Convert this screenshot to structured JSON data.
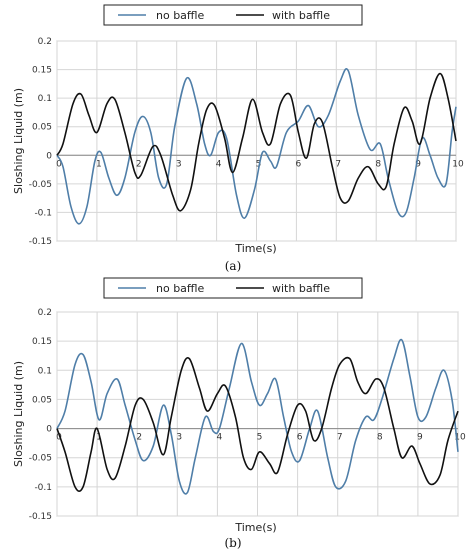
{
  "colors": {
    "no_baffle": "#4f7ea8",
    "with_baffle": "#111111",
    "grid": "#d6d6d6",
    "zero_axis": "#888888"
  },
  "chart_data": [
    {
      "type": "line",
      "panel_label": "(a)",
      "xlabel": "Time(s)",
      "ylabel": "Sloshing Liquid  (m)",
      "xlim": [
        0,
        10
      ],
      "ylim": [
        -0.15,
        0.2
      ],
      "x_ticks": [
        0,
        1,
        2,
        3,
        4,
        5,
        6,
        7,
        8,
        9,
        10
      ],
      "y_ticks": [
        -0.15,
        -0.1,
        -0.05,
        0,
        0.05,
        0.1,
        0.15,
        0.2
      ],
      "y_tick_labels": [
        "-0.15",
        "-0.1",
        "-0.05",
        "0",
        "0.05",
        "0.1",
        "0.15",
        "0.2"
      ],
      "grid": true,
      "legend_position": "top",
      "series": [
        {
          "name": "no baffle",
          "points": [
            [
              0,
              0
            ],
            [
              0.15,
              -0.02
            ],
            [
              0.35,
              -0.09
            ],
            [
              0.55,
              -0.12
            ],
            [
              0.75,
              -0.09
            ],
            [
              0.95,
              -0.01
            ],
            [
              1.1,
              0.005
            ],
            [
              1.3,
              -0.04
            ],
            [
              1.5,
              -0.07
            ],
            [
              1.7,
              -0.04
            ],
            [
              1.95,
              0.04
            ],
            [
              2.15,
              0.068
            ],
            [
              2.35,
              0.04
            ],
            [
              2.55,
              -0.04
            ],
            [
              2.75,
              -0.05
            ],
            [
              2.95,
              0.05
            ],
            [
              3.25,
              0.135
            ],
            [
              3.5,
              0.09
            ],
            [
              3.7,
              0.02
            ],
            [
              3.85,
              0.0
            ],
            [
              4.05,
              0.04
            ],
            [
              4.25,
              0.03
            ],
            [
              4.5,
              -0.07
            ],
            [
              4.7,
              -0.11
            ],
            [
              4.95,
              -0.06
            ],
            [
              5.15,
              0.005
            ],
            [
              5.35,
              -0.01
            ],
            [
              5.5,
              -0.02
            ],
            [
              5.75,
              0.04
            ],
            [
              6.05,
              0.06
            ],
            [
              6.3,
              0.087
            ],
            [
              6.55,
              0.05
            ],
            [
              6.8,
              0.07
            ],
            [
              7.1,
              0.13
            ],
            [
              7.3,
              0.148
            ],
            [
              7.55,
              0.07
            ],
            [
              7.85,
              0.01
            ],
            [
              8.1,
              0.02
            ],
            [
              8.3,
              -0.04
            ],
            [
              8.55,
              -0.1
            ],
            [
              8.75,
              -0.1
            ],
            [
              8.95,
              -0.04
            ],
            [
              9.15,
              0.03
            ],
            [
              9.35,
              0.0
            ],
            [
              9.55,
              -0.04
            ],
            [
              9.75,
              -0.05
            ],
            [
              9.9,
              0.04
            ],
            [
              10.0,
              0.085
            ]
          ]
        },
        {
          "name": "with baffle",
          "points": [
            [
              0,
              0
            ],
            [
              0.15,
              0.02
            ],
            [
              0.4,
              0.09
            ],
            [
              0.6,
              0.107
            ],
            [
              0.8,
              0.07
            ],
            [
              1.0,
              0.04
            ],
            [
              1.25,
              0.09
            ],
            [
              1.45,
              0.098
            ],
            [
              1.7,
              0.04
            ],
            [
              1.95,
              -0.03
            ],
            [
              2.1,
              -0.035
            ],
            [
              2.4,
              0.015
            ],
            [
              2.6,
              0.0
            ],
            [
              2.9,
              -0.07
            ],
            [
              3.1,
              -0.097
            ],
            [
              3.35,
              -0.06
            ],
            [
              3.55,
              0.02
            ],
            [
              3.75,
              0.08
            ],
            [
              3.95,
              0.087
            ],
            [
              4.2,
              0.03
            ],
            [
              4.4,
              -0.03
            ],
            [
              4.65,
              0.03
            ],
            [
              4.9,
              0.098
            ],
            [
              5.15,
              0.04
            ],
            [
              5.35,
              0.02
            ],
            [
              5.6,
              0.09
            ],
            [
              5.85,
              0.105
            ],
            [
              6.05,
              0.04
            ],
            [
              6.25,
              -0.005
            ],
            [
              6.45,
              0.055
            ],
            [
              6.65,
              0.058
            ],
            [
              6.9,
              -0.02
            ],
            [
              7.1,
              -0.075
            ],
            [
              7.3,
              -0.08
            ],
            [
              7.55,
              -0.04
            ],
            [
              7.8,
              -0.02
            ],
            [
              8.05,
              -0.05
            ],
            [
              8.25,
              -0.055
            ],
            [
              8.45,
              0.02
            ],
            [
              8.7,
              0.083
            ],
            [
              8.9,
              0.06
            ],
            [
              9.1,
              0.02
            ],
            [
              9.35,
              0.1
            ],
            [
              9.6,
              0.143
            ],
            [
              9.8,
              0.1
            ],
            [
              10.0,
              0.025
            ]
          ]
        }
      ]
    },
    {
      "type": "line",
      "panel_label": "(b)",
      "xlabel": "Time(s)",
      "ylabel": "Sloshing Liquid  (m)",
      "xlim": [
        0,
        10
      ],
      "ylim": [
        -0.15,
        0.2
      ],
      "x_ticks": [
        0,
        1,
        2,
        3,
        4,
        5,
        6,
        7,
        8,
        9,
        10
      ],
      "y_ticks": [
        -0.15,
        -0.1,
        -0.05,
        0,
        0.05,
        0.1,
        0.15,
        0.2
      ],
      "y_tick_labels": [
        "-0.15",
        "-0.1",
        "-0.05",
        "0",
        "0.05",
        "0.1",
        "0.15",
        "0.2"
      ],
      "grid": true,
      "legend_position": "top",
      "series": [
        {
          "name": "no baffle",
          "points": [
            [
              0,
              0
            ],
            [
              0.2,
              0.03
            ],
            [
              0.45,
              0.11
            ],
            [
              0.65,
              0.127
            ],
            [
              0.85,
              0.08
            ],
            [
              1.05,
              0.015
            ],
            [
              1.25,
              0.06
            ],
            [
              1.5,
              0.085
            ],
            [
              1.7,
              0.04
            ],
            [
              1.95,
              -0.02
            ],
            [
              2.15,
              -0.055
            ],
            [
              2.4,
              -0.03
            ],
            [
              2.65,
              0.04
            ],
            [
              2.85,
              -0.01
            ],
            [
              3.05,
              -0.09
            ],
            [
              3.25,
              -0.11
            ],
            [
              3.45,
              -0.05
            ],
            [
              3.7,
              0.02
            ],
            [
              3.9,
              -0.005
            ],
            [
              4.05,
              0.0
            ],
            [
              4.3,
              0.07
            ],
            [
              4.6,
              0.146
            ],
            [
              4.85,
              0.08
            ],
            [
              5.05,
              0.04
            ],
            [
              5.25,
              0.06
            ],
            [
              5.45,
              0.085
            ],
            [
              5.65,
              0.02
            ],
            [
              5.85,
              -0.04
            ],
            [
              6.05,
              -0.055
            ],
            [
              6.3,
              0.0
            ],
            [
              6.5,
              0.03
            ],
            [
              6.75,
              -0.05
            ],
            [
              6.95,
              -0.1
            ],
            [
              7.2,
              -0.09
            ],
            [
              7.45,
              -0.02
            ],
            [
              7.7,
              0.02
            ],
            [
              7.9,
              0.015
            ],
            [
              8.1,
              0.05
            ],
            [
              8.4,
              0.12
            ],
            [
              8.6,
              0.152
            ],
            [
              8.8,
              0.09
            ],
            [
              9.0,
              0.02
            ],
            [
              9.2,
              0.02
            ],
            [
              9.45,
              0.07
            ],
            [
              9.65,
              0.1
            ],
            [
              9.85,
              0.05
            ],
            [
              10.0,
              -0.04
            ]
          ]
        },
        {
          "name": "with baffle",
          "points": [
            [
              0,
              0
            ],
            [
              0.2,
              -0.04
            ],
            [
              0.45,
              -0.1
            ],
            [
              0.65,
              -0.1
            ],
            [
              0.85,
              -0.04
            ],
            [
              1.0,
              0.0
            ],
            [
              1.25,
              -0.07
            ],
            [
              1.45,
              -0.085
            ],
            [
              1.7,
              -0.03
            ],
            [
              1.95,
              0.04
            ],
            [
              2.15,
              0.05
            ],
            [
              2.4,
              0.01
            ],
            [
              2.65,
              -0.045
            ],
            [
              2.85,
              0.02
            ],
            [
              3.1,
              0.1
            ],
            [
              3.3,
              0.12
            ],
            [
              3.55,
              0.07
            ],
            [
              3.75,
              0.03
            ],
            [
              4.0,
              0.06
            ],
            [
              4.2,
              0.073
            ],
            [
              4.45,
              0.02
            ],
            [
              4.65,
              -0.05
            ],
            [
              4.85,
              -0.07
            ],
            [
              5.05,
              -0.04
            ],
            [
              5.3,
              -0.06
            ],
            [
              5.5,
              -0.075
            ],
            [
              5.75,
              -0.01
            ],
            [
              6.0,
              0.04
            ],
            [
              6.2,
              0.03
            ],
            [
              6.4,
              -0.02
            ],
            [
              6.6,
              0.0
            ],
            [
              6.85,
              0.07
            ],
            [
              7.05,
              0.11
            ],
            [
              7.3,
              0.12
            ],
            [
              7.5,
              0.08
            ],
            [
              7.7,
              0.06
            ],
            [
              7.95,
              0.085
            ],
            [
              8.15,
              0.07
            ],
            [
              8.4,
              0.0
            ],
            [
              8.6,
              -0.05
            ],
            [
              8.85,
              -0.03
            ],
            [
              9.05,
              -0.06
            ],
            [
              9.3,
              -0.095
            ],
            [
              9.55,
              -0.08
            ],
            [
              9.75,
              -0.02
            ],
            [
              10.0,
              0.03
            ]
          ]
        }
      ]
    }
  ]
}
